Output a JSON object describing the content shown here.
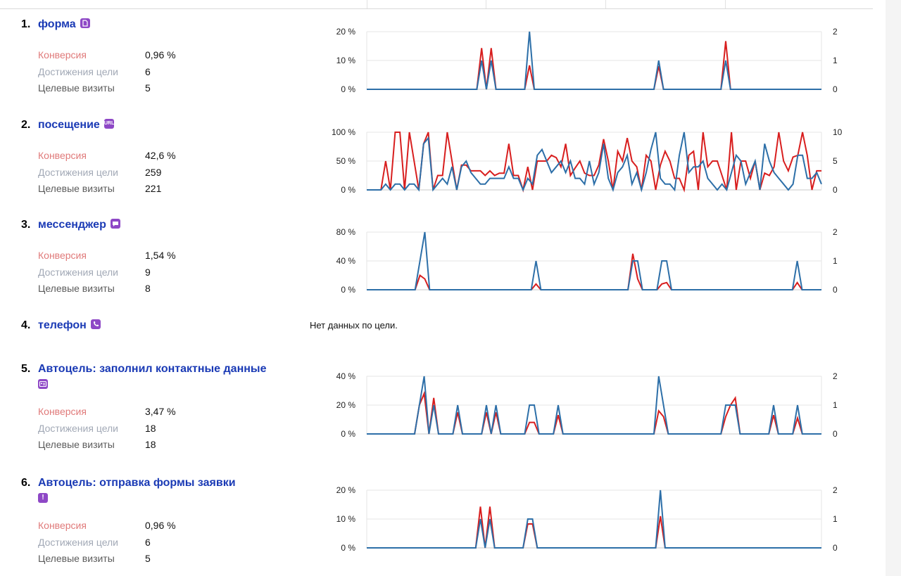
{
  "colors": {
    "title": "#1a3ab5",
    "conversion_line": "#d81e1e",
    "reaches_line": "#2d6fa8",
    "icon_bg": "#8e48c6"
  },
  "labels": {
    "conversion": "Конверсия",
    "reaches": "Достижения цели",
    "visits": "Целевые визиты"
  },
  "goals": [
    {
      "num": "1.",
      "title": "форма",
      "icon": "document-icon",
      "conversion": "0,96 %",
      "reaches": "6",
      "visits": "5"
    },
    {
      "num": "2.",
      "title": "посещение",
      "icon": "url-icon",
      "icon_text": "URL",
      "conversion": "42,6 %",
      "reaches": "259",
      "visits": "221"
    },
    {
      "num": "3.",
      "title": "мессенджер",
      "icon": "chat-icon",
      "conversion": "1,54 %",
      "reaches": "9",
      "visits": "8"
    },
    {
      "num": "4.",
      "title": "телефон",
      "icon": "phone-icon",
      "no_data": "Нет данных по цели."
    },
    {
      "num": "5.",
      "title": "Автоцель: заполнил контактные данные",
      "icon": "contact-card-icon",
      "conversion": "3,47 %",
      "reaches": "18",
      "visits": "18"
    },
    {
      "num": "6.",
      "title": "Автоцель: отправка формы заявки",
      "icon": "alert-icon",
      "icon_text": "!",
      "conversion": "0,96 %",
      "reaches": "6",
      "visits": "5"
    }
  ],
  "chart_data": [
    {
      "type": "line",
      "left_ticks": [
        "20 %",
        "10 %",
        "0 %"
      ],
      "right_ticks": [
        "2",
        "1",
        "0"
      ],
      "left_max": 20,
      "right_max": 2,
      "series": [
        {
          "values": [
            0,
            0,
            0,
            0,
            0,
            0,
            0,
            0,
            0,
            0,
            0,
            0,
            0,
            0,
            0,
            0,
            0,
            0,
            0,
            0,
            0,
            0,
            0,
            0,
            14.3,
            0,
            14.3,
            0,
            0,
            0,
            0,
            0,
            0,
            0,
            8.3,
            0,
            0,
            0,
            0,
            0,
            0,
            0,
            0,
            0,
            0,
            0,
            0,
            0,
            0,
            0,
            0,
            0,
            0,
            0,
            0,
            0,
            0,
            0,
            0,
            0,
            0,
            8,
            0,
            0,
            0,
            0,
            0,
            0,
            0,
            0,
            0,
            0,
            0,
            0,
            0,
            16.7,
            0,
            0,
            0,
            0,
            0,
            0,
            0,
            0,
            0,
            0,
            0,
            0,
            0,
            0,
            0,
            0,
            0,
            0,
            0,
            0
          ]
        },
        {
          "values": [
            0,
            0,
            0,
            0,
            0,
            0,
            0,
            0,
            0,
            0,
            0,
            0,
            0,
            0,
            0,
            0,
            0,
            0,
            0,
            0,
            0,
            0,
            0,
            0,
            1,
            0,
            1,
            0,
            0,
            0,
            0,
            0,
            0,
            0,
            2,
            0,
            0,
            0,
            0,
            0,
            0,
            0,
            0,
            0,
            0,
            0,
            0,
            0,
            0,
            0,
            0,
            0,
            0,
            0,
            0,
            0,
            0,
            0,
            0,
            0,
            0,
            1,
            0,
            0,
            0,
            0,
            0,
            0,
            0,
            0,
            0,
            0,
            0,
            0,
            0,
            1,
            0,
            0,
            0,
            0,
            0,
            0,
            0,
            0,
            0,
            0,
            0,
            0,
            0,
            0,
            0,
            0,
            0,
            0,
            0,
            0
          ]
        }
      ]
    },
    {
      "type": "line",
      "left_ticks": [
        "100 %",
        "50 %",
        "0 %"
      ],
      "right_ticks": [
        "10",
        "5",
        "0"
      ],
      "left_max": 100,
      "right_max": 10,
      "series": [
        {
          "values": [
            0,
            0,
            0,
            0,
            50,
            0,
            100,
            100,
            0,
            100,
            50,
            0,
            80,
            100,
            0,
            25,
            25,
            100,
            50,
            0,
            43,
            43,
            33,
            33,
            33,
            25,
            33,
            25,
            29,
            29,
            80,
            25,
            25,
            0,
            40,
            0,
            50,
            50,
            50,
            60,
            56,
            40,
            80,
            25,
            38,
            50,
            29,
            25,
            25,
            43,
            88,
            50,
            0,
            67,
            50,
            90,
            50,
            40,
            0,
            60,
            50,
            0,
            43,
            67,
            50,
            20,
            20,
            0,
            60,
            67,
            0,
            100,
            40,
            50,
            50,
            25,
            0,
            100,
            0,
            50,
            50,
            20,
            50,
            0,
            29,
            25,
            40,
            100,
            50,
            33,
            57,
            60,
            100,
            60,
            0,
            33,
            33
          ]
        },
        {
          "values": [
            0,
            0,
            0,
            0,
            1,
            0,
            1,
            1,
            0,
            1,
            1,
            0,
            8,
            9,
            0,
            1,
            2,
            1,
            4,
            0,
            4,
            5,
            3,
            2,
            1,
            1,
            2,
            2,
            2,
            2,
            4,
            2,
            2,
            0,
            2,
            1,
            6,
            7,
            5,
            3,
            4,
            5,
            3,
            5,
            2,
            2,
            1,
            5,
            1,
            3,
            8,
            2,
            0,
            3,
            4,
            6,
            1,
            3,
            0,
            3,
            7,
            10,
            2,
            1,
            1,
            0,
            6,
            10,
            3,
            4,
            4,
            5,
            2,
            1,
            0,
            1,
            0,
            3,
            6,
            5,
            1,
            3,
            5,
            0,
            8,
            5,
            3,
            2,
            1,
            0,
            1,
            6,
            6,
            2,
            2,
            3,
            1
          ]
        }
      ]
    },
    {
      "type": "line",
      "left_ticks": [
        "80 %",
        "40 %",
        "0 %"
      ],
      "right_ticks": [
        "2",
        "1",
        "0"
      ],
      "left_max": 80,
      "right_max": 2,
      "series": [
        {
          "values": [
            0,
            0,
            0,
            0,
            0,
            0,
            0,
            0,
            0,
            0,
            0,
            20,
            15,
            0,
            0,
            0,
            0,
            0,
            0,
            0,
            0,
            0,
            0,
            0,
            0,
            0,
            0,
            0,
            0,
            0,
            0,
            0,
            0,
            0,
            0,
            8,
            0,
            0,
            0,
            0,
            0,
            0,
            0,
            0,
            0,
            0,
            0,
            0,
            0,
            0,
            0,
            0,
            0,
            0,
            0,
            50,
            15,
            0,
            0,
            0,
            0,
            8,
            10,
            0,
            0,
            0,
            0,
            0,
            0,
            0,
            0,
            0,
            0,
            0,
            0,
            0,
            0,
            0,
            0,
            0,
            0,
            0,
            0,
            0,
            0,
            0,
            0,
            0,
            0,
            10,
            0,
            0,
            0,
            0,
            0
          ]
        },
        {
          "values": [
            0,
            0,
            0,
            0,
            0,
            0,
            0,
            0,
            0,
            0,
            0,
            1,
            2,
            0,
            0,
            0,
            0,
            0,
            0,
            0,
            0,
            0,
            0,
            0,
            0,
            0,
            0,
            0,
            0,
            0,
            0,
            0,
            0,
            0,
            0,
            1,
            0,
            0,
            0,
            0,
            0,
            0,
            0,
            0,
            0,
            0,
            0,
            0,
            0,
            0,
            0,
            0,
            0,
            0,
            0,
            1,
            1,
            0,
            0,
            0,
            0,
            1,
            1,
            0,
            0,
            0,
            0,
            0,
            0,
            0,
            0,
            0,
            0,
            0,
            0,
            0,
            0,
            0,
            0,
            0,
            0,
            0,
            0,
            0,
            0,
            0,
            0,
            0,
            0,
            1,
            0,
            0,
            0,
            0,
            0
          ]
        }
      ]
    },
    null,
    {
      "type": "line",
      "left_ticks": [
        "40 %",
        "20 %",
        "0 %"
      ],
      "right_ticks": [
        "2",
        "1",
        "0"
      ],
      "left_max": 40,
      "right_max": 2,
      "series": [
        {
          "values": [
            0,
            0,
            0,
            0,
            0,
            0,
            0,
            0,
            0,
            0,
            0,
            20,
            28,
            0,
            25,
            0,
            0,
            0,
            0,
            15,
            0,
            0,
            0,
            0,
            0,
            15,
            0,
            15,
            0,
            0,
            0,
            0,
            0,
            0,
            8,
            8,
            0,
            0,
            0,
            0,
            13,
            0,
            0,
            0,
            0,
            0,
            0,
            0,
            0,
            0,
            0,
            0,
            0,
            0,
            0,
            0,
            0,
            0,
            0,
            0,
            0,
            16,
            12,
            0,
            0,
            0,
            0,
            0,
            0,
            0,
            0,
            0,
            0,
            0,
            0,
            12,
            20,
            25,
            0,
            0,
            0,
            0,
            0,
            0,
            0,
            13,
            0,
            0,
            0,
            0,
            11,
            0,
            0,
            0,
            0,
            0
          ]
        },
        {
          "values": [
            0,
            0,
            0,
            0,
            0,
            0,
            0,
            0,
            0,
            0,
            0,
            1,
            2,
            0,
            1,
            0,
            0,
            0,
            0,
            1,
            0,
            0,
            0,
            0,
            0,
            1,
            0,
            1,
            0,
            0,
            0,
            0,
            0,
            0,
            1,
            1,
            0,
            0,
            0,
            0,
            1,
            0,
            0,
            0,
            0,
            0,
            0,
            0,
            0,
            0,
            0,
            0,
            0,
            0,
            0,
            0,
            0,
            0,
            0,
            0,
            0,
            2,
            1,
            0,
            0,
            0,
            0,
            0,
            0,
            0,
            0,
            0,
            0,
            0,
            0,
            1,
            1,
            1,
            0,
            0,
            0,
            0,
            0,
            0,
            0,
            1,
            0,
            0,
            0,
            0,
            1,
            0,
            0,
            0,
            0,
            0
          ]
        }
      ]
    },
    {
      "type": "line",
      "left_ticks": [
        "20 %",
        "10 %",
        "0 %"
      ],
      "right_ticks": [
        "2",
        "1",
        "0"
      ],
      "left_max": 20,
      "right_max": 2,
      "series": [
        {
          "values": [
            0,
            0,
            0,
            0,
            0,
            0,
            0,
            0,
            0,
            0,
            0,
            0,
            0,
            0,
            0,
            0,
            0,
            0,
            0,
            0,
            0,
            0,
            0,
            0,
            14.3,
            0,
            14.3,
            0,
            0,
            0,
            0,
            0,
            0,
            0,
            8.3,
            8.3,
            0,
            0,
            0,
            0,
            0,
            0,
            0,
            0,
            0,
            0,
            0,
            0,
            0,
            0,
            0,
            0,
            0,
            0,
            0,
            0,
            0,
            0,
            0,
            0,
            0,
            0,
            11,
            0,
            0,
            0,
            0,
            0,
            0,
            0,
            0,
            0,
            0,
            0,
            0,
            0,
            0,
            0,
            0,
            0,
            0,
            0,
            0,
            0,
            0,
            0,
            0,
            0,
            0,
            0,
            0,
            0,
            0,
            0,
            0,
            0,
            0
          ]
        },
        {
          "values": [
            0,
            0,
            0,
            0,
            0,
            0,
            0,
            0,
            0,
            0,
            0,
            0,
            0,
            0,
            0,
            0,
            0,
            0,
            0,
            0,
            0,
            0,
            0,
            0,
            1,
            0,
            1,
            0,
            0,
            0,
            0,
            0,
            0,
            0,
            1,
            1,
            0,
            0,
            0,
            0,
            0,
            0,
            0,
            0,
            0,
            0,
            0,
            0,
            0,
            0,
            0,
            0,
            0,
            0,
            0,
            0,
            0,
            0,
            0,
            0,
            0,
            0,
            2,
            0,
            0,
            0,
            0,
            0,
            0,
            0,
            0,
            0,
            0,
            0,
            0,
            0,
            0,
            0,
            0,
            0,
            0,
            0,
            0,
            0,
            0,
            0,
            0,
            0,
            0,
            0,
            0,
            0,
            0,
            0,
            0,
            0,
            0
          ]
        }
      ]
    }
  ]
}
